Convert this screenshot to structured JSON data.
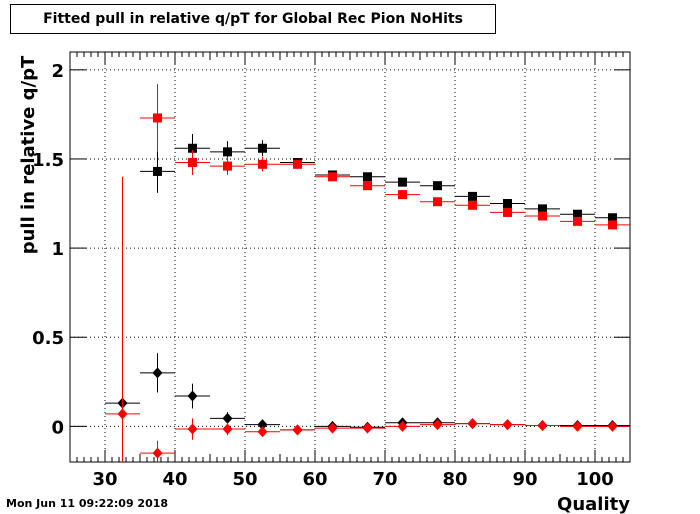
{
  "chart_data": {
    "type": "scatter",
    "title": "Fitted pull in relative q/pT for Global Rec Pion NoHits",
    "xlabel": "Quality",
    "ylabel": "pull in relative q/pT",
    "xlim": [
      25,
      105
    ],
    "ylim": [
      -0.2,
      2.1
    ],
    "x_ticks": [
      30,
      40,
      50,
      60,
      70,
      80,
      90,
      100
    ],
    "y_ticks": [
      0,
      0.5,
      1,
      1.5,
      2
    ],
    "y_tick_labels": [
      "0",
      "0.5",
      "1",
      "1.5",
      "2"
    ],
    "grid": true,
    "bin_half_width": 2.5,
    "series": [
      {
        "marker": "square",
        "color": "#000000",
        "points": [
          {
            "x": 37.5,
            "y": 1.43,
            "err": 0.12
          },
          {
            "x": 42.5,
            "y": 1.56,
            "err": 0.08
          },
          {
            "x": 47.5,
            "y": 1.54,
            "err": 0.06
          },
          {
            "x": 52.5,
            "y": 1.56,
            "err": 0.045
          },
          {
            "x": 57.5,
            "y": 1.48,
            "err": 0.025
          },
          {
            "x": 62.5,
            "y": 1.41,
            "err": 0.02
          },
          {
            "x": 67.5,
            "y": 1.4,
            "err": 0.02
          },
          {
            "x": 72.5,
            "y": 1.37,
            "err": 0.015
          },
          {
            "x": 77.5,
            "y": 1.35,
            "err": 0.015
          },
          {
            "x": 82.5,
            "y": 1.29,
            "err": 0.012
          },
          {
            "x": 87.5,
            "y": 1.25,
            "err": 0.012
          },
          {
            "x": 92.5,
            "y": 1.22,
            "err": 0.01
          },
          {
            "x": 97.5,
            "y": 1.19,
            "err": 0.01
          },
          {
            "x": 102.5,
            "y": 1.17,
            "err": 0.01
          }
        ]
      },
      {
        "marker": "square",
        "color": "#ff0000",
        "points": [
          {
            "x": 37.5,
            "y": 1.73,
            "err": 0.19
          },
          {
            "x": 42.5,
            "y": 1.48,
            "err": 0.07
          },
          {
            "x": 47.5,
            "y": 1.46,
            "err": 0.05
          },
          {
            "x": 52.5,
            "y": 1.47,
            "err": 0.04
          },
          {
            "x": 57.5,
            "y": 1.47,
            "err": 0.025
          },
          {
            "x": 62.5,
            "y": 1.4,
            "err": 0.02
          },
          {
            "x": 67.5,
            "y": 1.35,
            "err": 0.02
          },
          {
            "x": 72.5,
            "y": 1.3,
            "err": 0.015
          },
          {
            "x": 77.5,
            "y": 1.26,
            "err": 0.015
          },
          {
            "x": 82.5,
            "y": 1.24,
            "err": 0.012
          },
          {
            "x": 87.5,
            "y": 1.2,
            "err": 0.012
          },
          {
            "x": 92.5,
            "y": 1.18,
            "err": 0.01
          },
          {
            "x": 97.5,
            "y": 1.15,
            "err": 0.01
          },
          {
            "x": 102.5,
            "y": 1.13,
            "err": 0.01
          }
        ]
      },
      {
        "marker": "diamond",
        "color": "#000000",
        "points": [
          {
            "x": 32.5,
            "y": 0.13,
            "err": 0.0
          },
          {
            "x": 37.5,
            "y": 0.3,
            "err": 0.11
          },
          {
            "x": 42.5,
            "y": 0.17,
            "err": 0.07
          },
          {
            "x": 47.5,
            "y": 0.045,
            "err": 0.035
          },
          {
            "x": 52.5,
            "y": 0.01,
            "err": 0.025
          },
          {
            "x": 57.5,
            "y": -0.02,
            "err": 0.015
          },
          {
            "x": 62.5,
            "y": 0.0,
            "err": 0.01
          },
          {
            "x": 67.5,
            "y": -0.005,
            "err": 0.01
          },
          {
            "x": 72.5,
            "y": 0.02,
            "err": 0.01
          },
          {
            "x": 77.5,
            "y": 0.02,
            "err": 0.01
          },
          {
            "x": 82.5,
            "y": 0.015,
            "err": 0.008
          },
          {
            "x": 87.5,
            "y": 0.01,
            "err": 0.008
          },
          {
            "x": 92.5,
            "y": 0.005,
            "err": 0.006
          },
          {
            "x": 97.5,
            "y": 0.005,
            "err": 0.006
          },
          {
            "x": 102.5,
            "y": 0.005,
            "err": 0.006
          }
        ]
      },
      {
        "marker": "diamond",
        "color": "#ff0000",
        "points": [
          {
            "x": 32.5,
            "y": 0.07,
            "err": 1.33
          },
          {
            "x": 37.5,
            "y": -0.15,
            "err": 0.07
          },
          {
            "x": 42.5,
            "y": -0.015,
            "err": 0.06
          },
          {
            "x": 47.5,
            "y": -0.015,
            "err": 0.035
          },
          {
            "x": 52.5,
            "y": -0.03,
            "err": 0.025
          },
          {
            "x": 57.5,
            "y": -0.02,
            "err": 0.015
          },
          {
            "x": 62.5,
            "y": -0.01,
            "err": 0.01
          },
          {
            "x": 67.5,
            "y": -0.01,
            "err": 0.01
          },
          {
            "x": 72.5,
            "y": 0.0,
            "err": 0.01
          },
          {
            "x": 77.5,
            "y": 0.01,
            "err": 0.01
          },
          {
            "x": 82.5,
            "y": 0.015,
            "err": 0.008
          },
          {
            "x": 87.5,
            "y": 0.01,
            "err": 0.008
          },
          {
            "x": 92.5,
            "y": 0.005,
            "err": 0.006
          },
          {
            "x": 97.5,
            "y": 0.0,
            "err": 0.006
          },
          {
            "x": 102.5,
            "y": 0.0,
            "err": 0.006
          }
        ]
      }
    ]
  },
  "timestamp": "Mon Jun 11 09:22:09 2018"
}
